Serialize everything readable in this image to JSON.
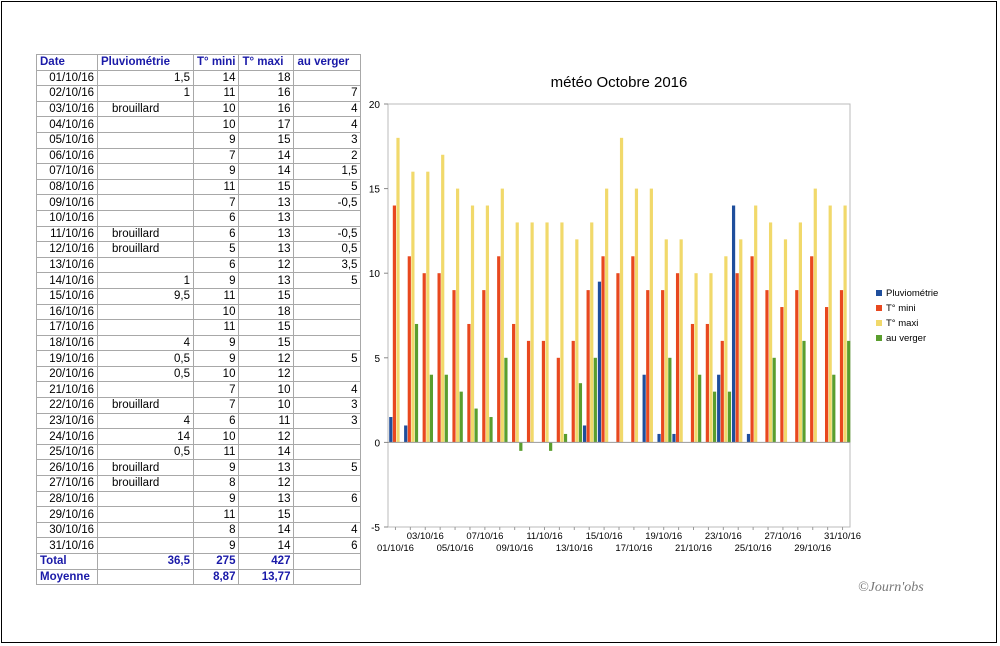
{
  "table": {
    "headers": [
      "Date",
      "Pluviométrie",
      "T° mini",
      "T° maxi",
      "au verger"
    ],
    "rows": [
      [
        "01/10/16",
        "1,5",
        "14",
        "18",
        ""
      ],
      [
        "02/10/16",
        "1",
        "11",
        "16",
        "7"
      ],
      [
        "03/10/16",
        "brouillard",
        "10",
        "16",
        "4"
      ],
      [
        "04/10/16",
        "",
        "10",
        "17",
        "4"
      ],
      [
        "05/10/16",
        "",
        "9",
        "15",
        "3"
      ],
      [
        "06/10/16",
        "",
        "7",
        "14",
        "2"
      ],
      [
        "07/10/16",
        "",
        "9",
        "14",
        "1,5"
      ],
      [
        "08/10/16",
        "",
        "11",
        "15",
        "5"
      ],
      [
        "09/10/16",
        "",
        "7",
        "13",
        "-0,5"
      ],
      [
        "10/10/16",
        "",
        "6",
        "13",
        ""
      ],
      [
        "11/10/16",
        "brouillard",
        "6",
        "13",
        "-0,5"
      ],
      [
        "12/10/16",
        "brouillard",
        "5",
        "13",
        "0,5"
      ],
      [
        "13/10/16",
        "",
        "6",
        "12",
        "3,5"
      ],
      [
        "14/10/16",
        "1",
        "9",
        "13",
        "5"
      ],
      [
        "15/10/16",
        "9,5",
        "11",
        "15",
        ""
      ],
      [
        "16/10/16",
        "",
        "10",
        "18",
        ""
      ],
      [
        "17/10/16",
        "",
        "11",
        "15",
        ""
      ],
      [
        "18/10/16",
        "4",
        "9",
        "15",
        ""
      ],
      [
        "19/10/16",
        "0,5",
        "9",
        "12",
        "5"
      ],
      [
        "20/10/16",
        "0,5",
        "10",
        "12",
        ""
      ],
      [
        "21/10/16",
        "",
        "7",
        "10",
        "4"
      ],
      [
        "22/10/16",
        "brouillard",
        "7",
        "10",
        "3"
      ],
      [
        "23/10/16",
        "4",
        "6",
        "11",
        "3"
      ],
      [
        "24/10/16",
        "14",
        "10",
        "12",
        ""
      ],
      [
        "25/10/16",
        "0,5",
        "11",
        "14",
        ""
      ],
      [
        "26/10/16",
        "brouillard",
        "9",
        "13",
        "5"
      ],
      [
        "27/10/16",
        "brouillard",
        "8",
        "12",
        ""
      ],
      [
        "28/10/16",
        "",
        "9",
        "13",
        "6"
      ],
      [
        "29/10/16",
        "",
        "11",
        "15",
        ""
      ],
      [
        "30/10/16",
        "",
        "8",
        "14",
        "4"
      ],
      [
        "31/10/16",
        "",
        "9",
        "14",
        "6"
      ]
    ],
    "total": [
      "Total",
      "36,5",
      "275",
      "427",
      ""
    ],
    "average": [
      "Moyenne",
      "",
      "8,87",
      "13,77",
      ""
    ]
  },
  "chart_data": {
    "type": "bar",
    "title": "météo Octobre 2016",
    "categories": [
      "01/10/16",
      "02/10/16",
      "03/10/16",
      "04/10/16",
      "05/10/16",
      "06/10/16",
      "07/10/16",
      "08/10/16",
      "09/10/16",
      "10/10/16",
      "11/10/16",
      "12/10/16",
      "13/10/16",
      "14/10/16",
      "15/10/16",
      "16/10/16",
      "17/10/16",
      "18/10/16",
      "19/10/16",
      "20/10/16",
      "21/10/16",
      "22/10/16",
      "23/10/16",
      "24/10/16",
      "25/10/16",
      "26/10/16",
      "27/10/16",
      "28/10/16",
      "29/10/16",
      "30/10/16",
      "31/10/16"
    ],
    "series": [
      {
        "name": "Pluviométrie",
        "color": "#1f4e9c",
        "values": [
          1.5,
          1,
          0,
          0,
          0,
          0,
          0,
          0,
          0,
          0,
          0,
          0,
          0,
          1,
          9.5,
          0,
          0,
          4,
          0.5,
          0.5,
          0,
          0,
          4,
          14,
          0.5,
          0,
          0,
          0,
          0,
          0,
          0
        ]
      },
      {
        "name": "T° mini",
        "color": "#e8481f",
        "values": [
          14,
          11,
          10,
          10,
          9,
          7,
          9,
          11,
          7,
          6,
          6,
          5,
          6,
          9,
          11,
          10,
          11,
          9,
          9,
          10,
          7,
          7,
          6,
          10,
          11,
          9,
          8,
          9,
          11,
          8,
          9
        ]
      },
      {
        "name": "T° maxi",
        "color": "#f1d96b",
        "values": [
          18,
          16,
          16,
          17,
          15,
          14,
          14,
          15,
          13,
          13,
          13,
          13,
          12,
          13,
          15,
          18,
          15,
          15,
          12,
          12,
          10,
          10,
          11,
          12,
          14,
          13,
          12,
          13,
          15,
          14,
          14
        ]
      },
      {
        "name": "au verger",
        "color": "#5a9e2e",
        "values": [
          0,
          7,
          4,
          4,
          3,
          2,
          1.5,
          5,
          -0.5,
          0,
          -0.5,
          0.5,
          3.5,
          5,
          0,
          0,
          0,
          0,
          5,
          0,
          4,
          3,
          3,
          0,
          0,
          5,
          0,
          6,
          0,
          4,
          6
        ]
      }
    ],
    "ylim": [
      -5,
      20
    ],
    "yticks": [
      -5,
      0,
      5,
      10,
      15,
      20
    ],
    "xtick_labels_row1": [
      "03/10/16",
      "07/10/16",
      "11/10/16",
      "15/10/16",
      "19/10/16",
      "23/10/16",
      "27/10/16",
      "31/10/16"
    ],
    "xtick_labels_row2": [
      "01/10/16",
      "05/10/16",
      "09/10/16",
      "13/10/16",
      "17/10/16",
      "21/10/16",
      "25/10/16",
      "29/10/16"
    ],
    "legend_position": "right",
    "grid": false
  },
  "watermark": "©Journ'obs"
}
